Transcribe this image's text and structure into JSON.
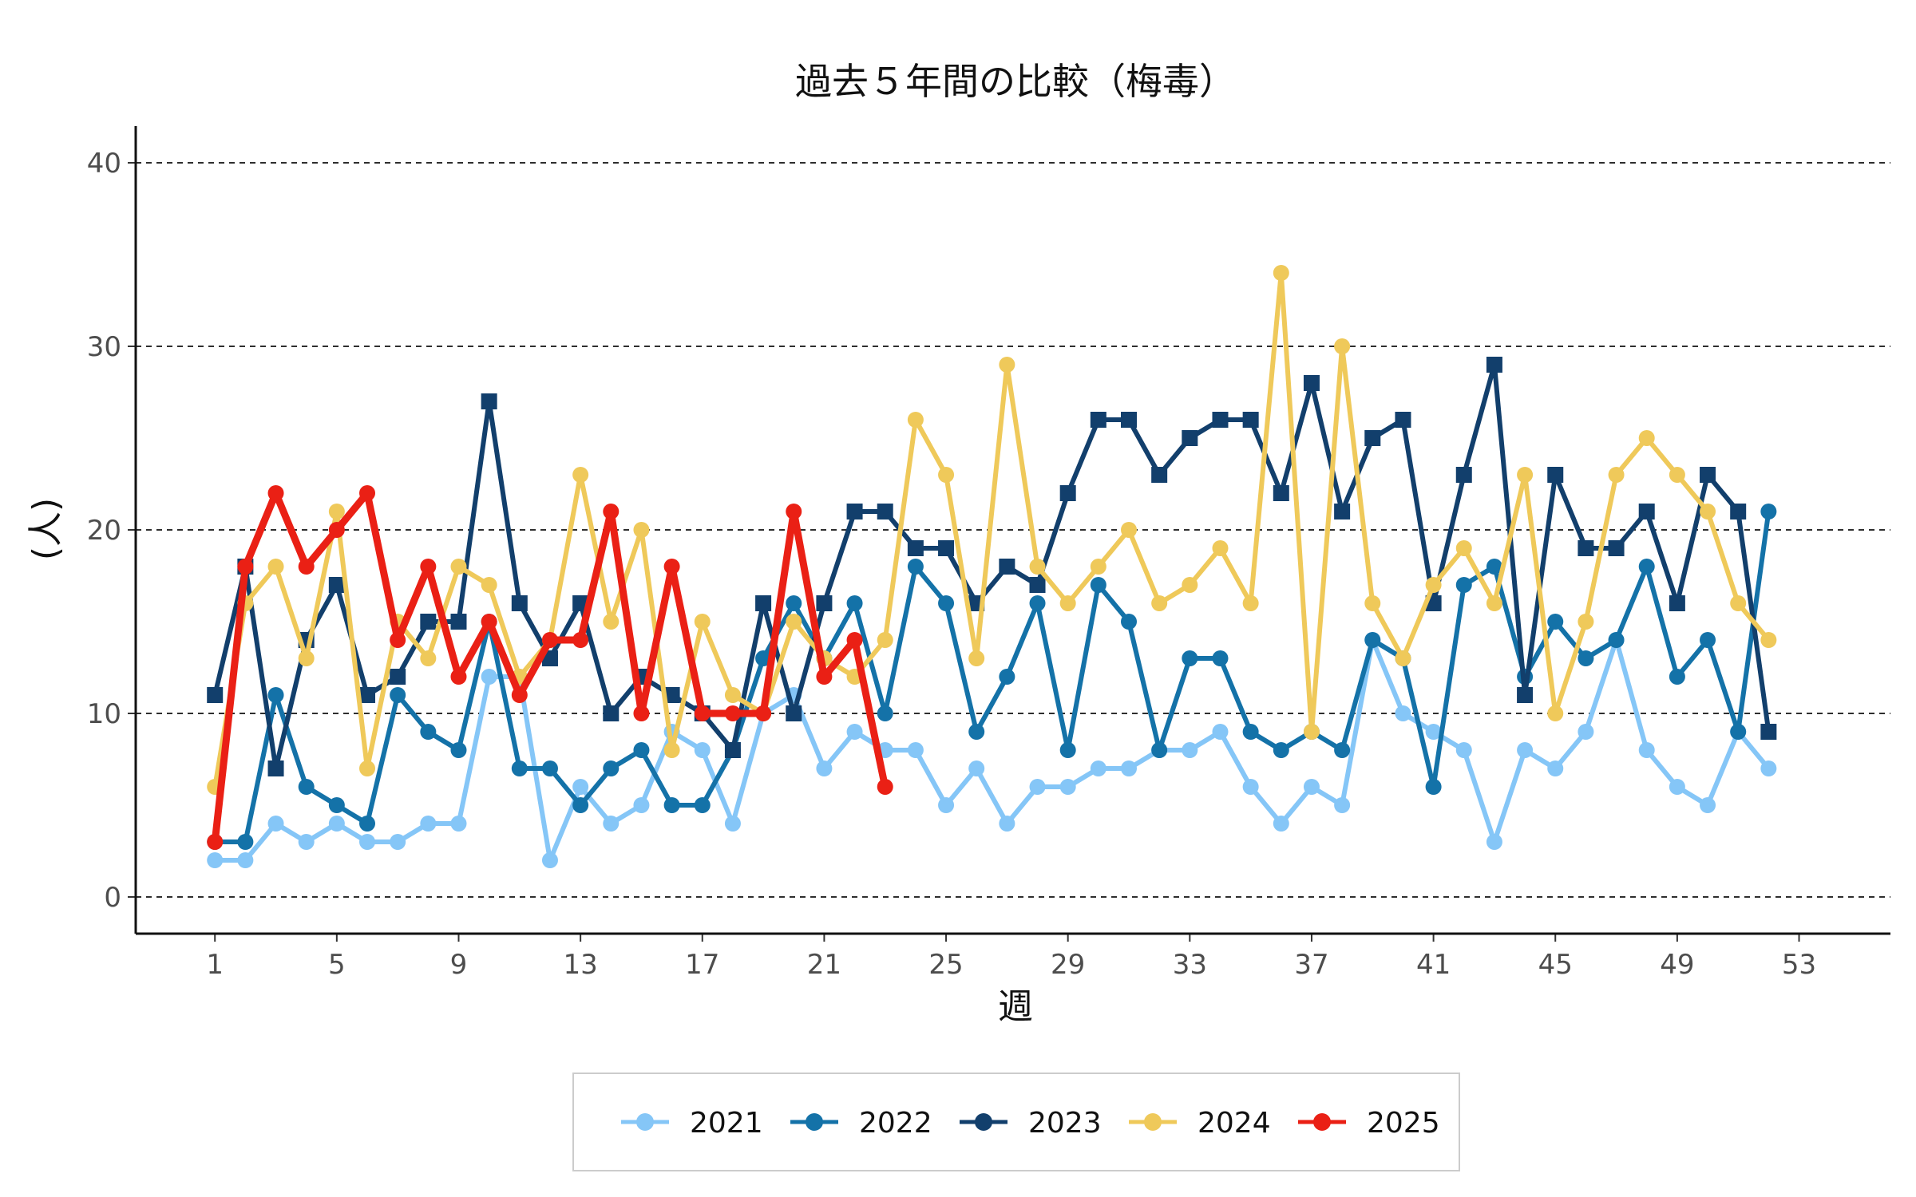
{
  "chart_data": {
    "type": "line",
    "title": "過去５年間の比較（梅毒）",
    "xlabel": "週",
    "ylabel": "(人)",
    "xlim": [
      -1.6,
      56
    ],
    "ylim": [
      -2,
      42
    ],
    "x_ticks": [
      "1",
      "5",
      "9",
      "13",
      "17",
      "21",
      "25",
      "29",
      "33",
      "37",
      "41",
      "45",
      "49",
      "53"
    ],
    "y_ticks": [
      "0",
      "10",
      "20",
      "30",
      "40"
    ],
    "grid": "horizontal-dashed",
    "legend_position": "bottom",
    "series": [
      {
        "name": "2021",
        "color": "#85C6F7",
        "marker": "circle",
        "values": [
          2,
          2,
          4,
          3,
          4,
          3,
          3,
          4,
          4,
          12,
          12,
          2,
          6,
          4,
          5,
          9,
          8,
          4,
          10,
          11,
          7,
          9,
          8,
          8,
          5,
          7,
          4,
          6,
          6,
          7,
          7,
          8,
          8,
          9,
          6,
          4,
          6,
          5,
          14,
          10,
          9,
          8,
          3,
          8,
          7,
          9,
          14,
          8,
          6,
          5,
          9,
          7
        ]
      },
      {
        "name": "2022",
        "color": "#1472A8",
        "marker": "circle",
        "values": [
          3,
          3,
          11,
          6,
          5,
          4,
          11,
          9,
          8,
          15,
          7,
          7,
          5,
          7,
          8,
          5,
          5,
          8,
          13,
          16,
          13,
          16,
          10,
          18,
          16,
          9,
          12,
          16,
          8,
          17,
          15,
          8,
          13,
          13,
          9,
          8,
          9,
          8,
          14,
          13,
          6,
          17,
          18,
          12,
          15,
          13,
          14,
          18,
          12,
          14,
          9,
          21
        ]
      },
      {
        "name": "2023",
        "color": "#123F6C",
        "marker": "square",
        "values": [
          11,
          18,
          7,
          14,
          17,
          11,
          12,
          15,
          15,
          27,
          16,
          13,
          16,
          10,
          12,
          11,
          10,
          8,
          16,
          10,
          16,
          21,
          21,
          19,
          19,
          16,
          18,
          17,
          22,
          26,
          26,
          23,
          25,
          26,
          26,
          22,
          28,
          21,
          25,
          26,
          16,
          23,
          29,
          11,
          23,
          19,
          19,
          21,
          16,
          23,
          21,
          9
        ]
      },
      {
        "name": "2024",
        "color": "#EFC95A",
        "marker": "circle",
        "values": [
          6,
          16,
          18,
          13,
          21,
          7,
          15,
          13,
          18,
          17,
          12,
          14,
          23,
          15,
          20,
          8,
          15,
          11,
          10,
          15,
          13,
          12,
          14,
          26,
          23,
          13,
          29,
          18,
          16,
          18,
          20,
          16,
          17,
          19,
          16,
          34,
          9,
          30,
          16,
          13,
          17,
          19,
          16,
          23,
          10,
          15,
          23,
          25,
          23,
          21,
          16,
          14
        ]
      },
      {
        "name": "2025",
        "color": "#EA2015",
        "marker": "circle",
        "values": [
          3,
          18,
          22,
          18,
          20,
          22,
          14,
          18,
          12,
          15,
          11,
          14,
          14,
          21,
          10,
          18,
          10,
          10,
          10,
          21,
          12,
          14,
          6
        ]
      }
    ]
  }
}
